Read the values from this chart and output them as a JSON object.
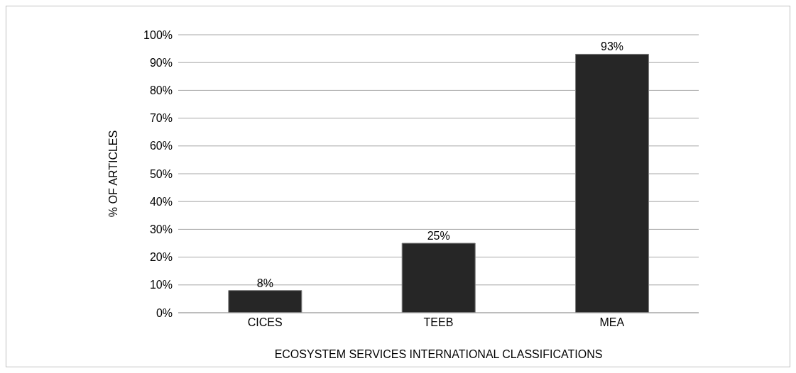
{
  "chart_data": {
    "type": "bar",
    "xlabel": "ECOSYSTEM SERVICES INTERNATIONAL CLASSIFICATIONS",
    "ylabel": "% OF ARTICLES",
    "categories": [
      "CICES",
      "TEEB",
      "MEA"
    ],
    "values": [
      8,
      25,
      93
    ],
    "value_labels": [
      "8%",
      "25%",
      "93%"
    ],
    "color": "#262626",
    "ylim": [
      0,
      100
    ],
    "yticks": [
      {
        "value": 0,
        "label": "0%"
      },
      {
        "value": 10,
        "label": "10%"
      },
      {
        "value": 20,
        "label": "20%"
      },
      {
        "value": 30,
        "label": "30%"
      },
      {
        "value": 40,
        "label": "40%"
      },
      {
        "value": 50,
        "label": "50%"
      },
      {
        "value": 60,
        "label": "60%"
      },
      {
        "value": 70,
        "label": "70%"
      },
      {
        "value": 80,
        "label": "80%"
      },
      {
        "value": 90,
        "label": "90%"
      },
      {
        "value": 100,
        "label": "100%"
      }
    ],
    "grid": "y",
    "legend": false
  }
}
